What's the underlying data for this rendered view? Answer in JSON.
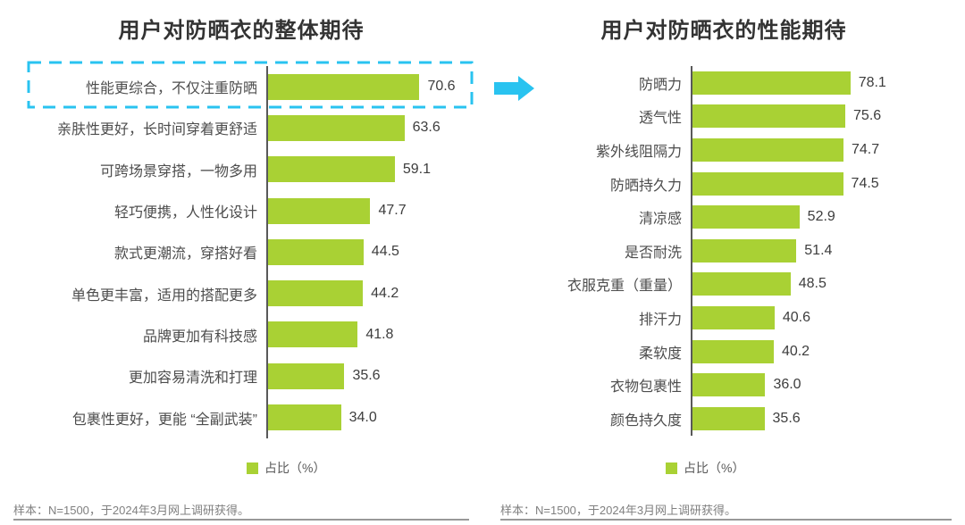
{
  "chart_data": [
    {
      "type": "bar",
      "orientation": "horizontal",
      "title": "用户对防晒衣的整体期待",
      "categories": [
        "性能更综合，不仅注重防晒",
        "亲肤性更好，长时间穿着更舒适",
        "可跨场景穿搭，一物多用",
        "轻巧便携，人性化设计",
        "款式更潮流，穿搭好看",
        "单色更丰富，适用的搭配更多",
        "品牌更加有科技感",
        "更加容易清洗和打理",
        "包裹性更好，更能 “全副武装”"
      ],
      "values": [
        70.6,
        63.6,
        59.1,
        47.7,
        44.5,
        44.2,
        41.8,
        35.6,
        34.0
      ],
      "value_labels": [
        "70.6",
        "63.6",
        "59.1",
        "47.7",
        "44.5",
        "44.2",
        "41.8",
        "35.6",
        "34.0"
      ],
      "xlim": [
        0,
        80
      ],
      "grid": false,
      "legend_position": "bottom-center",
      "legend": [
        "占比（%）"
      ],
      "highlight_index": 0,
      "footnote": "样本：N=1500，于2024年3月网上调研获得。"
    },
    {
      "type": "bar",
      "orientation": "horizontal",
      "title": "用户对防晒衣的性能期待",
      "categories": [
        "防晒力",
        "透气性",
        "紫外线阻隔力",
        "防晒持久力",
        "清凉感",
        "是否耐洗",
        "衣服克重（重量）",
        "排汗力",
        "柔软度",
        "衣物包裹性",
        "颜色持久度"
      ],
      "values": [
        78.1,
        75.6,
        74.7,
        74.5,
        52.9,
        51.4,
        48.5,
        40.6,
        40.2,
        36.0,
        35.6
      ],
      "value_labels": [
        "78.1",
        "75.6",
        "74.7",
        "74.5",
        "52.9",
        "51.4",
        "48.5",
        "40.6",
        "40.2",
        "36.0",
        "35.6"
      ],
      "xlim": [
        0,
        80
      ],
      "grid": false,
      "legend_position": "bottom-center",
      "legend": [
        "占比（%）"
      ],
      "footnote": "样本：N=1500，于2024年3月网上调研获得。"
    }
  ],
  "colors": {
    "bar_green": "#a9d134",
    "accent_cyan": "#29c3f0",
    "title_text": "#333333",
    "label_text": "#4d4d4d",
    "value_text": "#3d3d3d",
    "legend_text": "#595959",
    "footnote_text": "#808080",
    "axis_line": "#595959",
    "rule_line": "#999999"
  }
}
